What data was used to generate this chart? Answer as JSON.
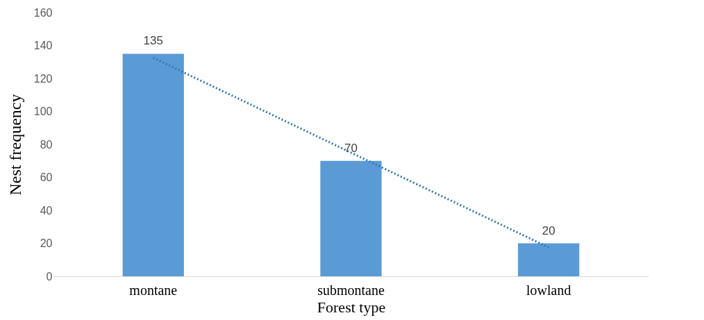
{
  "chart_data": {
    "type": "bar",
    "xlabel": "Forest type",
    "ylabel": "Nest frequency",
    "categories": [
      "montane",
      "submontane",
      "lowland"
    ],
    "series": [
      {
        "color": "#5b9bd5",
        "values": [
          135,
          70,
          20
        ],
        "value_labels": [
          "135",
          "70",
          "20"
        ]
      },
      {
        "type": "line",
        "color": "#2e75b6",
        "line_style": "dotted",
        "x": [
          "montane",
          "submontane",
          "lowland"
        ],
        "values": [
          132.5,
          75,
          17.5
        ]
      }
    ],
    "ylim": [
      0,
      160
    ],
    "yticks": [
      0,
      20,
      40,
      60,
      80,
      100,
      120,
      140,
      160
    ]
  }
}
